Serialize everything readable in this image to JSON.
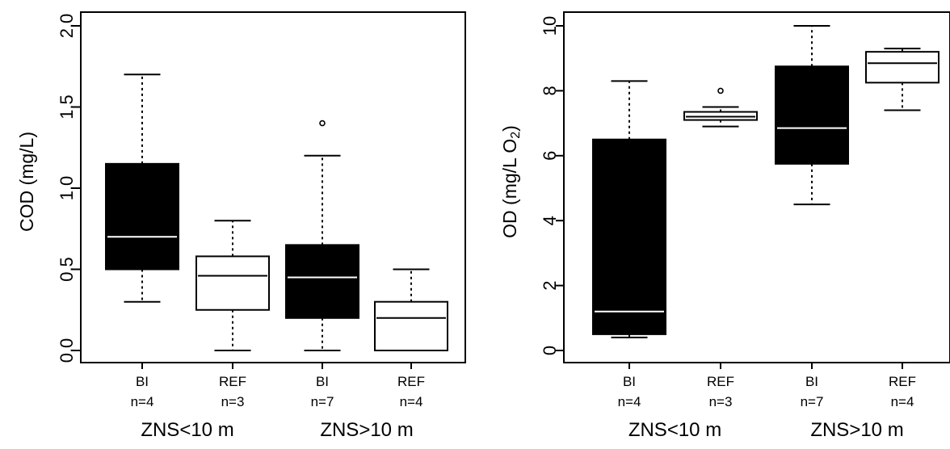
{
  "chart_data": [
    {
      "type": "box",
      "ylabel": "COD (mg/L)",
      "ylim": [
        0,
        2
      ],
      "yticks": [
        0,
        0.5,
        1,
        1.5,
        2
      ],
      "ytick_labels": [
        "0,0",
        "0,5",
        "1,0",
        "1,5",
        "2,0"
      ],
      "categories": [
        {
          "label": "BI",
          "n": "n=4",
          "fill": "#000000",
          "min": 0.3,
          "q1": 0.5,
          "median": 0.7,
          "q3": 1.15,
          "max": 1.7,
          "outliers": []
        },
        {
          "label": "REF",
          "n": "n=3",
          "fill": "#ffffff",
          "min": 0.0,
          "q1": 0.25,
          "median": 0.46,
          "q3": 0.58,
          "max": 0.8,
          "outliers": []
        },
        {
          "label": "BI",
          "n": "n=7",
          "fill": "#000000",
          "min": 0.0,
          "q1": 0.2,
          "median": 0.45,
          "q3": 0.65,
          "max": 1.2,
          "outliers": [
            1.4
          ]
        },
        {
          "label": "REF",
          "n": "n=4",
          "fill": "#ffffff",
          "min": 0.0,
          "q1": 0.0,
          "median": 0.2,
          "q3": 0.3,
          "max": 0.5,
          "outliers": []
        }
      ],
      "groups": [
        "ZNS<10 m",
        "ZNS>10 m"
      ]
    },
    {
      "type": "box",
      "ylabel": "OD (mg/L O",
      "ylabel_sub": "2",
      "ylabel_end": ")",
      "ylim": [
        0,
        10
      ],
      "yticks": [
        0,
        2,
        4,
        6,
        8,
        10
      ],
      "ytick_labels": [
        "0",
        "2",
        "4",
        "6",
        "8",
        "10"
      ],
      "categories": [
        {
          "label": "BI",
          "n": "n=4",
          "fill": "#000000",
          "min": 0.4,
          "q1": 0.5,
          "median": 1.2,
          "q3": 6.5,
          "max": 8.3,
          "outliers": []
        },
        {
          "label": "REF",
          "n": "n=3",
          "fill": "#ffffff",
          "min": 6.9,
          "q1": 7.1,
          "median": 7.2,
          "q3": 7.35,
          "max": 7.5,
          "outliers": [
            8.0
          ]
        },
        {
          "label": "BI",
          "n": "n=7",
          "fill": "#000000",
          "min": 4.5,
          "q1": 5.75,
          "median": 6.85,
          "q3": 8.75,
          "max": 10.0,
          "outliers": []
        },
        {
          "label": "REF",
          "n": "n=4",
          "fill": "#ffffff",
          "min": 7.4,
          "q1": 8.25,
          "median": 8.85,
          "q3": 9.2,
          "max": 9.3,
          "outliers": []
        }
      ],
      "groups": [
        "ZNS<10 m",
        "ZNS>10 m"
      ]
    }
  ]
}
